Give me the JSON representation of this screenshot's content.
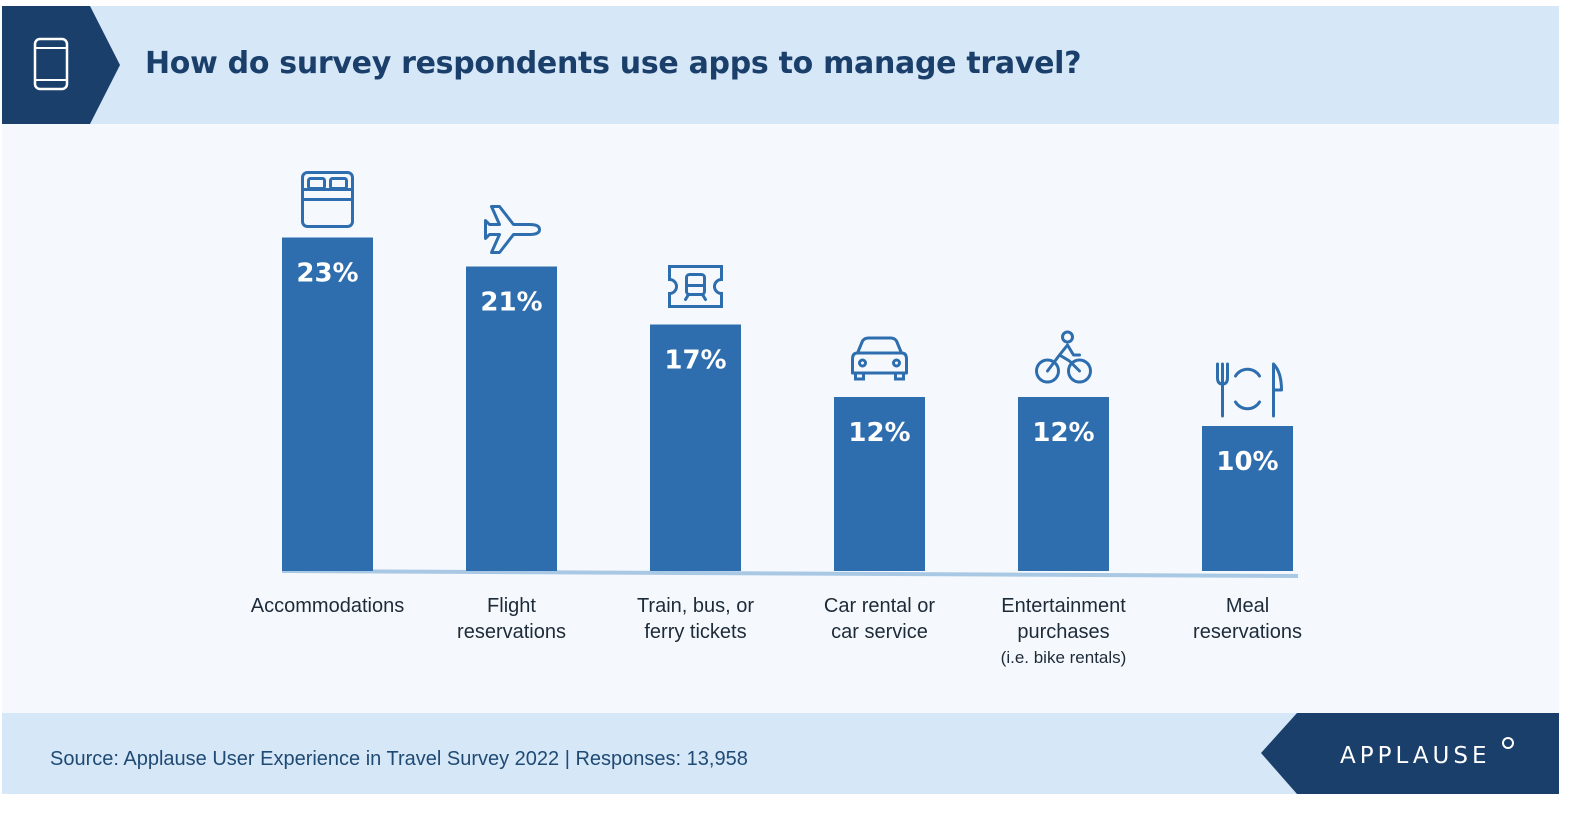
{
  "header": {
    "title": "How do survey respondents use apps to manage travel?",
    "icon": "mobile-phone-icon"
  },
  "chart_data": {
    "type": "bar",
    "title": "How do survey respondents use apps to manage travel?",
    "unit": "%",
    "categories": [
      {
        "lines": [
          "Accommodations"
        ],
        "icon": "bed-icon"
      },
      {
        "lines": [
          "Flight",
          "reservations"
        ],
        "icon": "airplane-icon"
      },
      {
        "lines": [
          "Train, bus, or",
          "ferry tickets"
        ],
        "icon": "train-ticket-icon"
      },
      {
        "lines": [
          "Car rental or",
          "car service"
        ],
        "icon": "car-icon"
      },
      {
        "lines": [
          "Entertainment",
          "purchases"
        ],
        "note": "(i.e. bike rentals)",
        "icon": "bicycle-icon"
      },
      {
        "lines": [
          "Meal",
          "reservations"
        ],
        "icon": "dining-icon"
      }
    ],
    "values": [
      23,
      21,
      17,
      12,
      12,
      10
    ],
    "value_labels": [
      "23%",
      "21%",
      "17%",
      "12%",
      "12%",
      "10%"
    ],
    "grid": false,
    "legend": false
  },
  "footer": {
    "source": "Source: Applause User Experience in Travel Survey 2022 | Responses: 13,958",
    "brand": "APPLAUSE"
  },
  "colors": {
    "bar": "#2e6eae",
    "header_bg": "#d6e7f7",
    "badge": "#1b3f6b",
    "title": "#1b3f6b",
    "icon": "#2e6eae",
    "text": "#1d2a38",
    "baseline": "#a9c8e4"
  }
}
